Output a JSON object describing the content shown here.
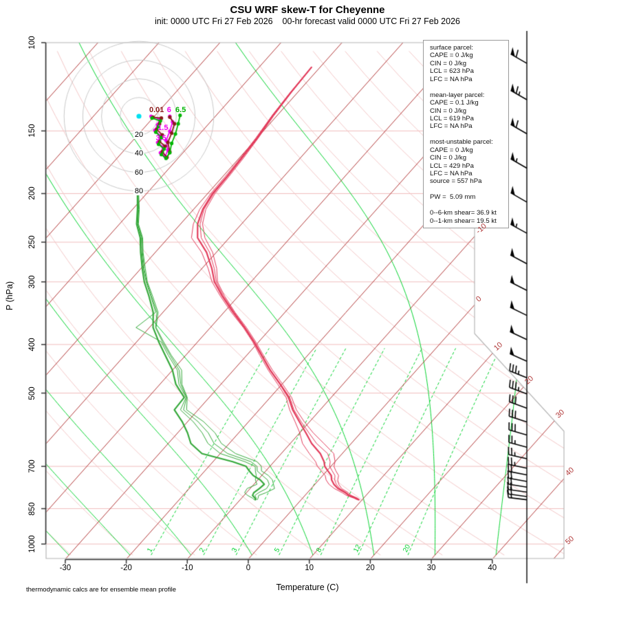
{
  "page": {
    "title": "CSU WRF skew-T for Cheyenne",
    "subtitle": "init: 0000 UTC Fri 27 Feb 2026    00-hr forecast valid 0000 UTC Fri 27 Feb 2026",
    "footnote": "thermodynamic calcs are for ensemble mean profile"
  },
  "axes": {
    "x_label": "Temperature (C)",
    "y_label": "P (hPa)",
    "x_ticks": [
      -30,
      -20,
      -10,
      0,
      10,
      20,
      30,
      40
    ],
    "y_ticks": [
      100,
      150,
      200,
      250,
      300,
      400,
      500,
      700,
      850,
      1000
    ]
  },
  "info_box": {
    "lines": [
      "surface parcel:",
      "CAPE = 0 J/kg",
      "CIN = 0 J/kg",
      "LCL = 623 hPa",
      "LFC = NA hPa",
      "",
      "mean-layer parcel:",
      "CAPE = 0.1 J/kg",
      "CIN = 0 J/kg",
      "LCL = 619 hPa",
      "LFC = NA hPa",
      "",
      "most-unstable parcel:",
      "CAPE = 0 J/kg",
      "CIN = 0 J/kg",
      "LCL = 429 hPa",
      "LFC = NA hPa",
      "source = 557 hPa",
      "",
      "PW =  5.09 mm",
      "",
      "0--6-km shear= 36.9 kt",
      "0--1-km shear= 19.5 kt"
    ]
  },
  "colors": {
    "isotherm": "#b03535",
    "dry_adiabat": "#f2c6c6",
    "pressure_line": "#f0bcbc",
    "moist_adiabat": "#00d22d",
    "mixing_ratio": "#00d22d",
    "temperature_trace": "#e23b5b",
    "dewpoint_trace": "#35a83a",
    "border": "#b4b4b4",
    "axis": "#333333",
    "hodo_ring": "#c8c8c8",
    "hodo_magenta": "#f000f0",
    "hodo_maroon": "#8b1a1a",
    "hodo_green": "#00b400",
    "storm_dot": "#00e0f0",
    "barb": "#000000"
  },
  "chart_data": {
    "type": "skew-t log-p ensemble sounding",
    "temp_axis_range_c": [
      -30,
      40
    ],
    "pressure_axis_range_hpa": [
      100,
      1050
    ],
    "isotherm_labels_c": [
      -10,
      0,
      10,
      20,
      30,
      40,
      50
    ],
    "mixing_ratio_labels_gkg": [
      1,
      2,
      3,
      5,
      8,
      12,
      20
    ],
    "dry_adiabat_theta_k": {
      "min": 240,
      "max": 460,
      "step": 10
    },
    "moist_adiabat_start_c": [
      -60,
      -50,
      -40,
      -30,
      -20,
      -10,
      0,
      10,
      20,
      30,
      40
    ],
    "pressure_gridlines_hpa": [
      150,
      200,
      250,
      300,
      400,
      500,
      700,
      850,
      1000
    ],
    "temperature_profile": {
      "pressures_hpa": [
        816,
        810,
        800,
        790,
        775,
        760,
        745,
        730,
        715,
        700,
        685,
        660,
        630,
        600,
        570,
        540,
        510,
        480,
        450,
        420,
        395,
        370,
        345,
        320,
        300,
        282,
        262,
        245,
        230,
        215,
        200,
        185,
        170,
        155,
        140,
        126,
        112
      ],
      "mean_c": [
        9.4,
        8.7,
        7.2,
        6.2,
        4.4,
        3.1,
        2.1,
        1.4,
        0.2,
        -1.0,
        -1.8,
        -3.6,
        -6.5,
        -9.0,
        -11.7,
        -14.5,
        -17.0,
        -20.3,
        -24.0,
        -27.6,
        -30.8,
        -34.4,
        -38.5,
        -42.7,
        -46.0,
        -48.4,
        -51.6,
        -55.2,
        -57.2,
        -58.5,
        -59.2,
        -59.3,
        -59.6,
        -60.0,
        -60.7,
        -61.1,
        -61.4
      ],
      "member_offsets_c": [
        [
          0.2,
          0.3,
          0.4,
          0.5,
          0.6,
          0.8,
          1.0,
          1.2,
          1.3,
          1.5,
          1.8,
          2.2,
          2.0,
          1.2,
          0.8,
          0.6,
          0.5,
          0.4,
          0.4,
          0.3,
          0.3,
          0.3,
          0.3,
          0.4,
          0.5,
          0.8,
          1.0,
          1.2,
          0.8,
          0.5,
          0.4,
          0.3,
          0.3,
          0.2,
          0.2,
          0.1,
          0.0
        ],
        [
          -0.2,
          -0.3,
          -0.4,
          -0.5,
          -0.6,
          -0.8,
          -0.9,
          -1.0,
          -1.1,
          -1.2,
          -1.4,
          -1.8,
          -1.5,
          -1.0,
          -0.7,
          -0.5,
          -0.4,
          -0.4,
          -0.3,
          -0.3,
          -0.2,
          -0.2,
          -0.3,
          -0.3,
          -0.4,
          -0.6,
          -0.8,
          -1.0,
          -0.7,
          -0.5,
          -0.3,
          -0.3,
          -0.2,
          -0.2,
          -0.1,
          -0.1,
          0.0
        ],
        [
          0.1,
          0.1,
          0.2,
          0.2,
          0.3,
          0.4,
          0.5,
          0.6,
          0.7,
          0.8,
          1.0,
          1.2,
          0.8,
          0.5,
          0.3,
          0.2,
          0.2,
          0.1,
          0.1,
          0.1,
          0.1,
          0.1,
          0.2,
          0.2,
          0.3,
          0.4,
          0.5,
          0.6,
          0.4,
          0.2,
          0.2,
          0.1,
          0.1,
          0.1,
          0.0,
          0.0,
          0.0
        ]
      ]
    },
    "dewpoint_profile": {
      "pressures_hpa": [
        816,
        810,
        800,
        790,
        775,
        760,
        745,
        730,
        715,
        700,
        685,
        660,
        630,
        600,
        570,
        540,
        510,
        480,
        450,
        420,
        395,
        370,
        345,
        320,
        300,
        282,
        262,
        245,
        230,
        215,
        200
      ],
      "mean_c": [
        -7.5,
        -7.8,
        -8.6,
        -8.8,
        -8.5,
        -8.3,
        -9.6,
        -11.4,
        -12.7,
        -13.9,
        -16.8,
        -23.0,
        -26.3,
        -28.4,
        -30.9,
        -33.9,
        -34.1,
        -37.4,
        -40.0,
        -43.4,
        -46.4,
        -49.4,
        -51.6,
        -54.7,
        -57.5,
        -59.8,
        -62.4,
        -64.6,
        -67.2,
        -69.2,
        -71.5
      ],
      "member_offsets_c": [
        [
          0.3,
          0.5,
          1.0,
          2.0,
          2.5,
          1.5,
          2.0,
          2.5,
          2.0,
          2.5,
          4.0,
          5.5,
          5.0,
          4.5,
          3.5,
          2.0,
          0.5,
          1.0,
          1.5,
          1.0,
          0.8,
          0.5,
          0.8,
          0.6,
          0.5,
          0.5,
          0.4,
          0.4,
          0.3,
          0.3,
          0.2
        ],
        [
          -0.2,
          -0.4,
          -0.8,
          -1.5,
          -2.0,
          -1.2,
          -0.8,
          0.5,
          1.0,
          1.5,
          2.0,
          3.0,
          2.8,
          2.4,
          1.8,
          1.0,
          0.3,
          0.5,
          0.8,
          0.5,
          0.4,
          -2.8,
          0.4,
          0.3,
          0.3,
          0.2,
          0.2,
          0.2,
          0.2,
          0.1,
          0.1
        ],
        [
          0.1,
          0.2,
          0.4,
          0.8,
          1.2,
          0.8,
          1.2,
          1.5,
          1.3,
          1.8,
          3.0,
          4.2,
          3.8,
          3.4,
          2.6,
          1.5,
          0.4,
          0.8,
          1.1,
          0.8,
          0.6,
          0.4,
          0.6,
          0.4,
          0.4,
          0.3,
          0.3,
          0.3,
          0.2,
          0.2,
          0.1
        ]
      ]
    },
    "wind_barbs": [
      {
        "p": 110,
        "kt": 60,
        "dir": 300
      },
      {
        "p": 130,
        "kt": 65,
        "dir": 300
      },
      {
        "p": 152,
        "kt": 60,
        "dir": 300
      },
      {
        "p": 178,
        "kt": 55,
        "dir": 300
      },
      {
        "p": 208,
        "kt": 50,
        "dir": 300
      },
      {
        "p": 240,
        "kt": 55,
        "dir": 299
      },
      {
        "p": 276,
        "kt": 50,
        "dir": 298
      },
      {
        "p": 312,
        "kt": 50,
        "dir": 297
      },
      {
        "p": 350,
        "kt": 50,
        "dir": 296
      },
      {
        "p": 391,
        "kt": 50,
        "dir": 295
      },
      {
        "p": 432,
        "kt": 50,
        "dir": 294
      },
      {
        "p": 466,
        "kt": 35,
        "dir": 292
      },
      {
        "p": 502,
        "kt": 35,
        "dir": 291
      },
      {
        "p": 536,
        "kt": 30,
        "dir": 290
      },
      {
        "p": 571,
        "kt": 30,
        "dir": 288
      },
      {
        "p": 606,
        "kt": 30,
        "dir": 286
      },
      {
        "p": 641,
        "kt": 25,
        "dir": 285
      },
      {
        "p": 676,
        "kt": 25,
        "dir": 283
      },
      {
        "p": 706,
        "kt": 25,
        "dir": 282
      },
      {
        "p": 728,
        "kt": 22,
        "dir": 281
      },
      {
        "p": 750,
        "kt": 22,
        "dir": 280
      },
      {
        "p": 770,
        "kt": 20,
        "dir": 279
      },
      {
        "p": 788,
        "kt": 20,
        "dir": 278
      },
      {
        "p": 804,
        "kt": 18,
        "dir": 278
      },
      {
        "p": 816,
        "kt": 15,
        "dir": 277
      }
    ],
    "hodograph": {
      "ring_labels_kt": [
        20,
        40,
        60,
        80
      ],
      "storm_motion_dot": {
        "u": 0,
        "v": 0
      },
      "height_labels": [
        {
          "text": "0.01",
          "u": 11,
          "v": 2.5,
          "color_key": "hodo_maroon"
        },
        {
          "text": "6",
          "u": 30,
          "v": 2.5,
          "color_key": "hodo_magenta"
        },
        {
          "text": "6.5",
          "u": 39,
          "v": 2.5,
          "color_key": "hodo_green"
        },
        {
          "text": "1.5",
          "u": 20,
          "v": -17,
          "color_key": "hodo_magenta"
        },
        {
          "text": "3.5",
          "u": 18,
          "v": -28,
          "color_key": "hodo_magenta"
        }
      ],
      "members": [
        {
          "color_key": "hodo_magenta",
          "u": [
            13,
            22,
            20,
            17,
            23,
            20,
            26,
            23,
            28,
            31,
            29,
            33,
            36,
            33
          ],
          "v": [
            0,
            -3,
            -9,
            -15,
            -21,
            -28,
            -33,
            -39,
            -43,
            -36,
            -26,
            -16,
            -6,
            0
          ]
        },
        {
          "color_key": "hodo_maroon",
          "u": [
            15,
            24,
            22,
            19,
            25,
            22,
            28,
            25,
            30,
            33,
            31,
            35,
            38,
            33
          ],
          "v": [
            -1,
            -2,
            -8,
            -14,
            -20,
            -27,
            -32,
            -38,
            -44,
            -38,
            -28,
            -18,
            -8,
            -1
          ]
        },
        {
          "color_key": "hodo_green",
          "u": [
            14,
            23,
            21,
            18,
            24,
            21,
            27,
            24,
            29,
            33,
            35,
            39,
            42,
            44
          ],
          "v": [
            -2,
            -5,
            -11,
            -17,
            -23,
            -30,
            -35,
            -41,
            -45,
            -39,
            -29,
            -19,
            -8,
            1
          ]
        }
      ]
    }
  }
}
